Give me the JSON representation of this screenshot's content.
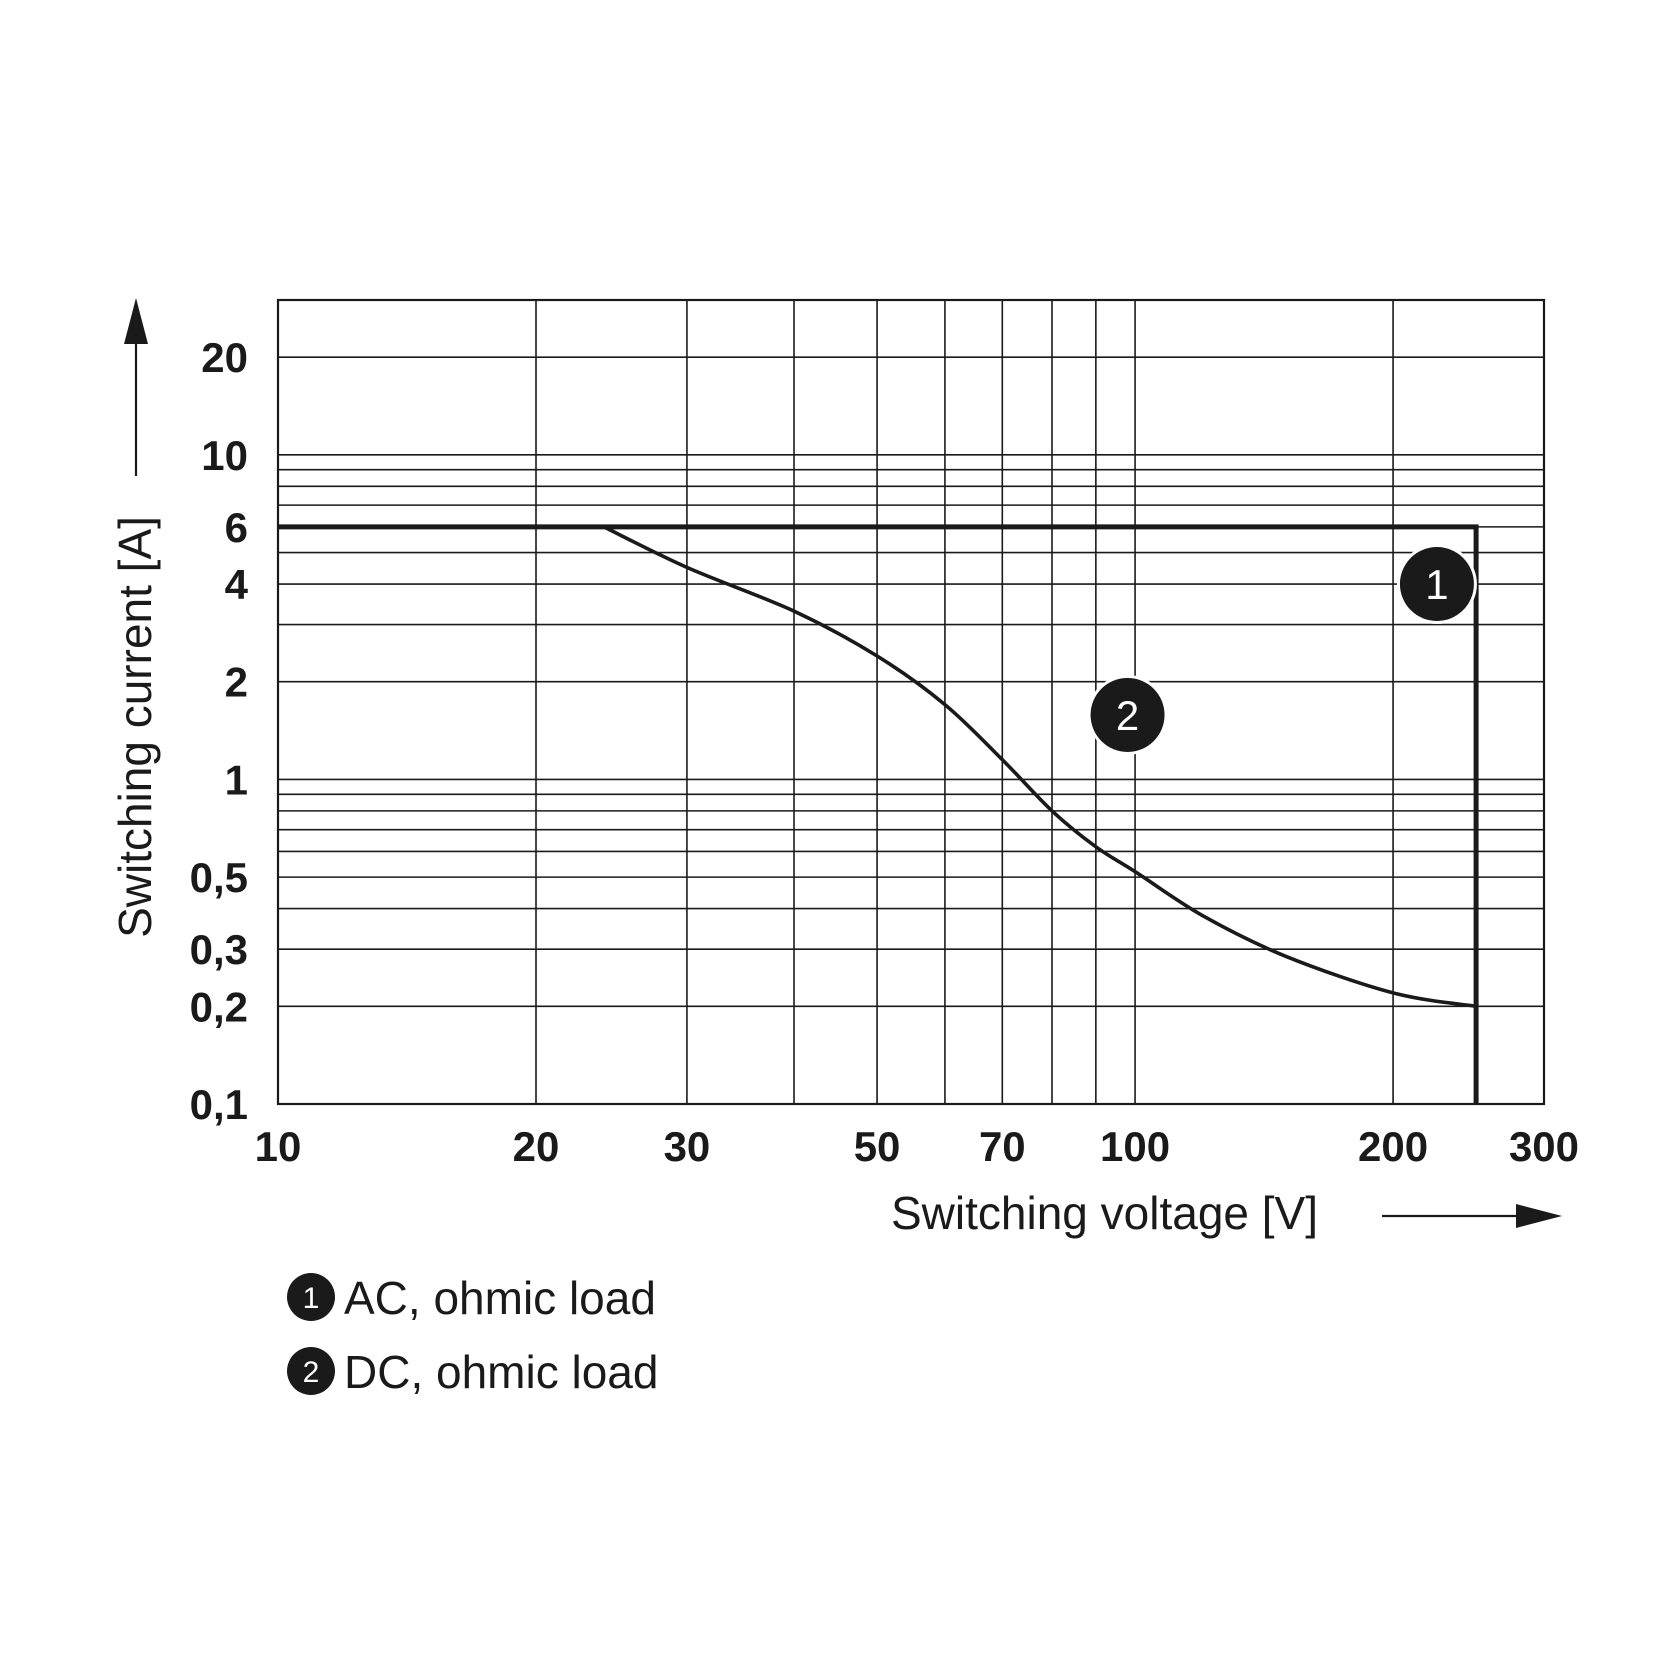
{
  "chart_data": {
    "type": "line",
    "xscale": "log",
    "yscale": "log",
    "xlim": [
      10,
      300
    ],
    "ylim": [
      0.1,
      30
    ],
    "grid": true,
    "xlabel": "Switching voltage [V]",
    "ylabel": "Switching current [A]",
    "x_grid_values": [
      20,
      30,
      40,
      50,
      60,
      70,
      80,
      90,
      100,
      200
    ],
    "y_grid_values": [
      0.2,
      0.3,
      0.4,
      0.5,
      0.6,
      0.7,
      0.8,
      0.9,
      1,
      2,
      3,
      4,
      5,
      6,
      7,
      8,
      9,
      10,
      20
    ],
    "x_ticks": [
      {
        "value": 10,
        "label": "10"
      },
      {
        "value": 20,
        "label": "20"
      },
      {
        "value": 30,
        "label": "30"
      },
      {
        "value": 50,
        "label": "50"
      },
      {
        "value": 70,
        "label": "70"
      },
      {
        "value": 100,
        "label": "100"
      },
      {
        "value": 200,
        "label": "200"
      },
      {
        "value": 300,
        "label": "300"
      }
    ],
    "y_ticks": [
      {
        "value": 20,
        "label": "20"
      },
      {
        "value": 10,
        "label": "10"
      },
      {
        "value": 6,
        "label": "6"
      },
      {
        "value": 4,
        "label": "4"
      },
      {
        "value": 2,
        "label": "2"
      },
      {
        "value": 1,
        "label": "1"
      },
      {
        "value": 0.5,
        "label": "0,5"
      },
      {
        "value": 0.3,
        "label": "0,3"
      },
      {
        "value": 0.2,
        "label": "0,2"
      },
      {
        "value": 0.1,
        "label": "0,1"
      }
    ],
    "series": [
      {
        "id": "1",
        "name": "AC, ohmic load",
        "badge": "1",
        "badge_at": {
          "x": 225,
          "y": 4
        },
        "points": [
          {
            "x": 10,
            "y": 6
          },
          {
            "x": 250,
            "y": 6
          },
          {
            "x": 250,
            "y": 0.1
          }
        ]
      },
      {
        "id": "2",
        "name": "DC, ohmic load",
        "badge": "2",
        "badge_at": {
          "x": 98,
          "y": 1.58
        },
        "points": [
          {
            "x": 24,
            "y": 6
          },
          {
            "x": 30,
            "y": 4.5
          },
          {
            "x": 40,
            "y": 3.3
          },
          {
            "x": 50,
            "y": 2.4
          },
          {
            "x": 60,
            "y": 1.7
          },
          {
            "x": 70,
            "y": 1.15
          },
          {
            "x": 80,
            "y": 0.8
          },
          {
            "x": 90,
            "y": 0.62
          },
          {
            "x": 100,
            "y": 0.52
          },
          {
            "x": 120,
            "y": 0.38
          },
          {
            "x": 150,
            "y": 0.285
          },
          {
            "x": 200,
            "y": 0.22
          },
          {
            "x": 250,
            "y": 0.2
          }
        ]
      }
    ]
  }
}
